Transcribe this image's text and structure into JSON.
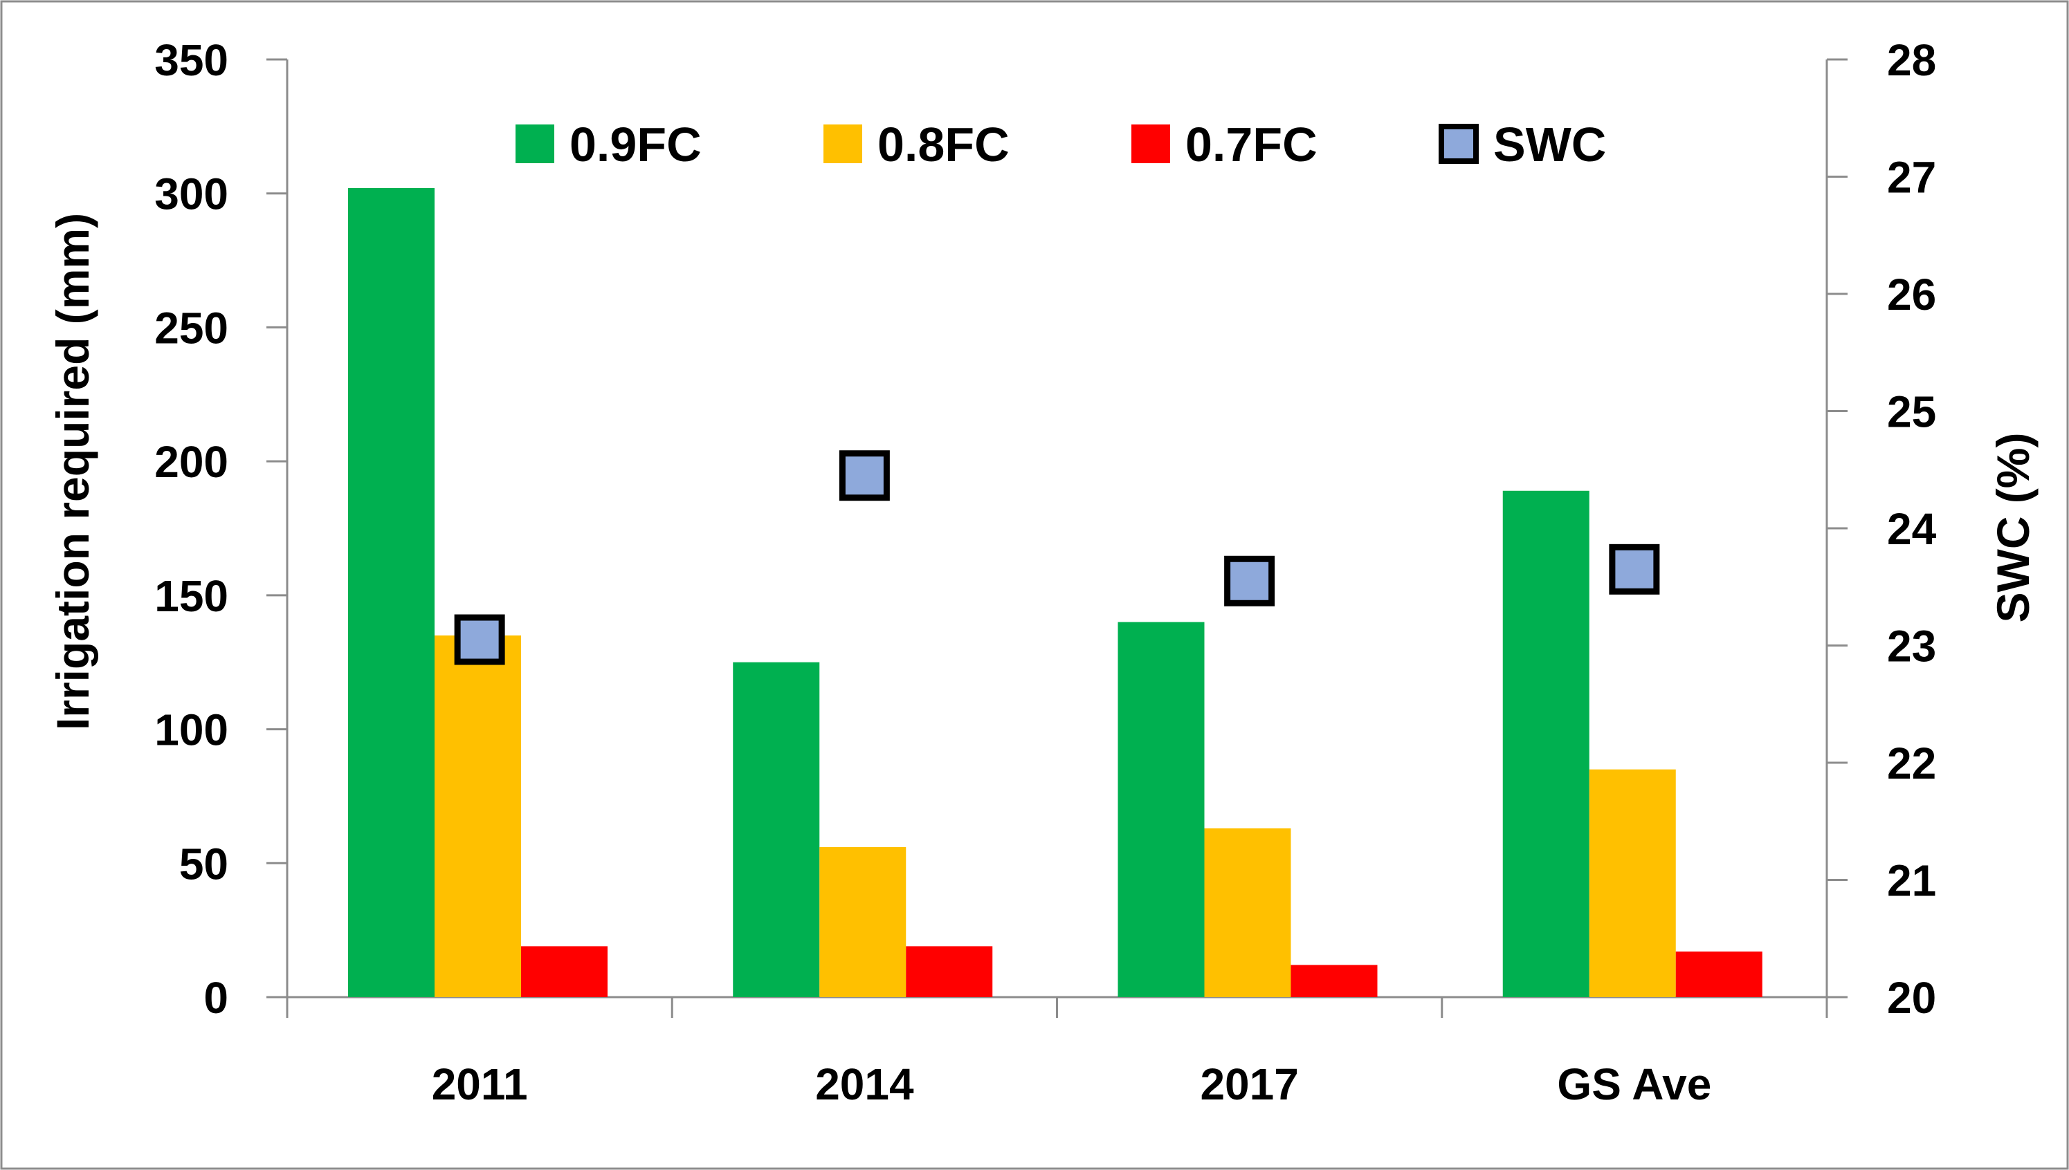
{
  "chart_data": {
    "type": "bar",
    "categories": [
      "2011",
      "2014",
      "2017",
      "GS Ave"
    ],
    "series": [
      {
        "name": "0.9FC",
        "axis": "left",
        "color": "#00B050",
        "values": [
          302,
          125,
          140,
          189
        ]
      },
      {
        "name": "0.8FC",
        "axis": "left",
        "color": "#FFC000",
        "values": [
          135,
          56,
          63,
          85
        ]
      },
      {
        "name": "0.7FC",
        "axis": "left",
        "color": "#FF0000",
        "values": [
          19,
          19,
          12,
          17
        ]
      },
      {
        "name": "SWC",
        "axis": "right",
        "type": "scatter",
        "color": "#8EA9DB",
        "values": [
          23.05,
          24.45,
          23.55,
          23.65
        ]
      }
    ],
    "title": "",
    "xlabel": "",
    "ylabel": "Irrigation required (mm)",
    "y2label": "SWC (%)",
    "ylim": [
      0,
      350
    ],
    "y2lim": [
      20,
      28
    ],
    "yticks": [
      "0",
      "50",
      "100",
      "150",
      "200",
      "250",
      "300",
      "350"
    ],
    "y2ticks": [
      "20",
      "21",
      "22",
      "23",
      "24",
      "25",
      "26",
      "27",
      "28"
    ],
    "legend_position": "top-center",
    "grid": false
  }
}
